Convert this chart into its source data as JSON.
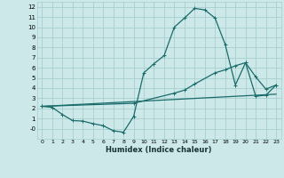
{
  "xlabel": "Humidex (Indice chaleur)",
  "bg_color": "#cce8e8",
  "grid_color": "#a8cece",
  "line_color": "#1a6b6b",
  "xlim": [
    -0.5,
    23.5
  ],
  "ylim": [
    -1.0,
    12.5
  ],
  "xticks": [
    0,
    1,
    2,
    3,
    4,
    5,
    6,
    7,
    8,
    9,
    10,
    11,
    12,
    13,
    14,
    15,
    16,
    17,
    18,
    19,
    20,
    21,
    22,
    23
  ],
  "yticks": [
    0,
    1,
    2,
    3,
    4,
    5,
    6,
    7,
    8,
    9,
    10,
    11,
    12
  ],
  "ytick_labels": [
    "-0",
    "1",
    "2",
    "3",
    "4",
    "5",
    "6",
    "7",
    "8",
    "9",
    "10",
    "11",
    "12"
  ],
  "line1_x": [
    0,
    1,
    2,
    3,
    4,
    5,
    6,
    7,
    8,
    9,
    10,
    11,
    12,
    13,
    14,
    15,
    16,
    17,
    18,
    19,
    20,
    21,
    22,
    23
  ],
  "line1_y": [
    2.2,
    2.1,
    1.4,
    0.8,
    0.75,
    0.5,
    0.3,
    -0.2,
    -0.35,
    1.2,
    5.5,
    6.4,
    7.2,
    10.0,
    10.9,
    11.85,
    11.7,
    10.9,
    8.3,
    4.3,
    6.5,
    5.1,
    3.9,
    4.3
  ],
  "line2_x": [
    0,
    23
  ],
  "line2_y": [
    2.2,
    3.4
  ],
  "line3_x": [
    0,
    9,
    13,
    14,
    15,
    17,
    18,
    19,
    20,
    21,
    22,
    23
  ],
  "line3_y": [
    2.2,
    2.5,
    3.5,
    3.8,
    4.4,
    5.5,
    5.8,
    6.2,
    6.5,
    3.2,
    3.3,
    4.3
  ]
}
